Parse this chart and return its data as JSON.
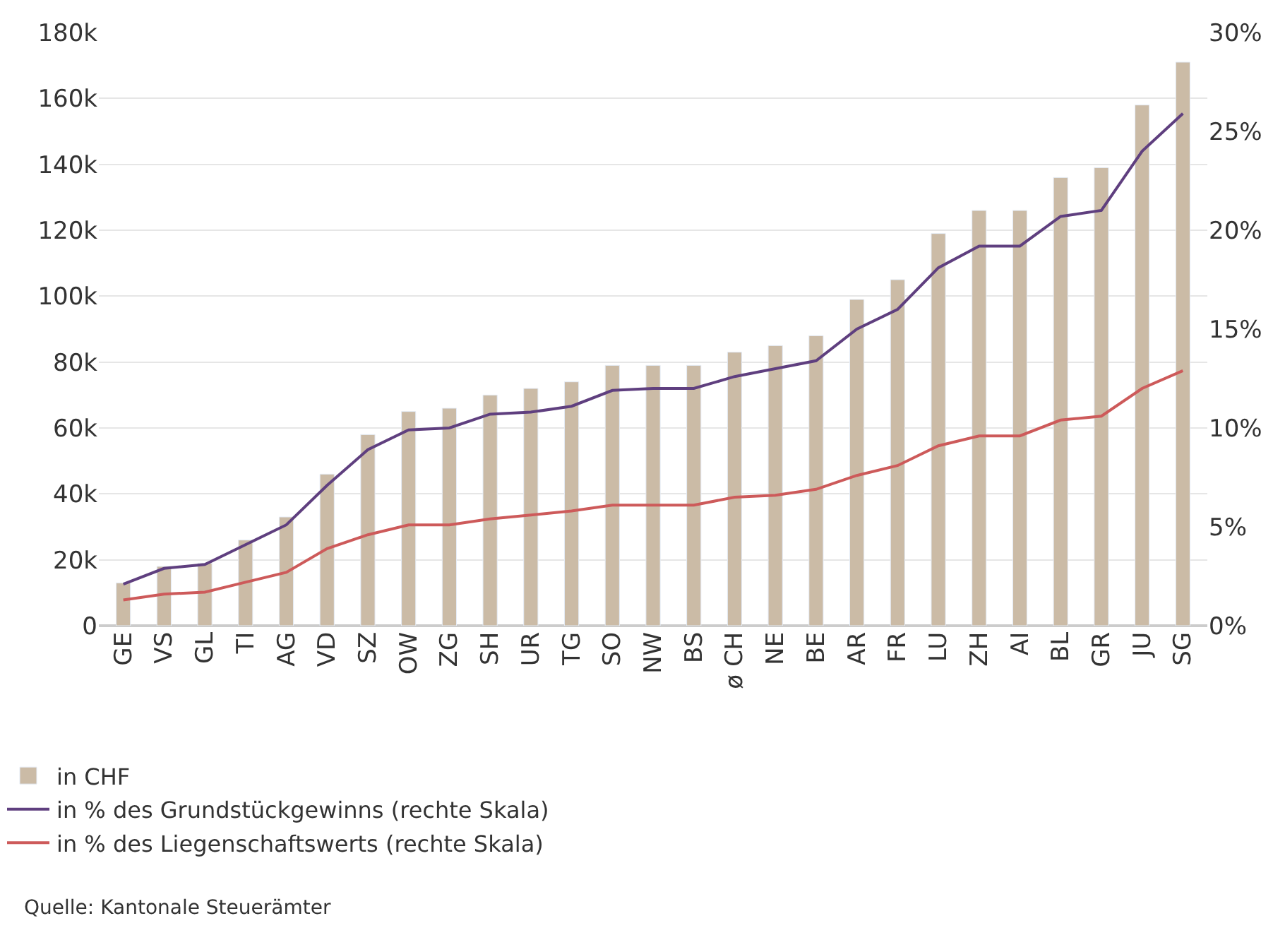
{
  "chart_data": {
    "type": "bar",
    "categories": [
      "GE",
      "VS",
      "GL",
      "TI",
      "AG",
      "VD",
      "SZ",
      "OW",
      "ZG",
      "SH",
      "UR",
      "TG",
      "SO",
      "NW",
      "BS",
      "ø CH",
      "NE",
      "BE",
      "AR",
      "FR",
      "LU",
      "ZH",
      "AI",
      "BL",
      "GR",
      "JU",
      "SG"
    ],
    "series": [
      {
        "name": "in CHF",
        "color": "#cbbba6",
        "values": [
          13,
          18,
          19,
          26,
          33,
          46,
          58,
          65,
          66,
          70,
          72,
          74,
          79,
          79,
          79,
          83,
          85,
          88,
          99,
          105,
          119,
          126,
          126,
          136,
          139,
          158,
          171
        ]
      },
      {
        "name": "in % des Grundstückgewinns (rechte Skala)",
        "type": "line",
        "axis": "y2",
        "color": "#5f3f7f",
        "values": [
          2.1,
          2.9,
          3.1,
          4.1,
          5.1,
          7.1,
          8.9,
          9.9,
          10.0,
          10.7,
          10.8,
          11.1,
          11.9,
          12.0,
          12.0,
          12.6,
          13.0,
          13.4,
          15.0,
          16.0,
          18.1,
          19.2,
          19.2,
          20.7,
          21.0,
          24.0,
          25.9
        ]
      },
      {
        "name": "in % des Liegenschaftswerts (rechte Skala)",
        "type": "line",
        "axis": "y2",
        "color": "#cd5a5a",
        "values": [
          1.3,
          1.6,
          1.7,
          2.2,
          2.7,
          3.9,
          4.6,
          5.1,
          5.1,
          5.4,
          5.6,
          5.8,
          6.1,
          6.1,
          6.1,
          6.5,
          6.6,
          6.9,
          7.6,
          8.1,
          9.1,
          9.6,
          9.6,
          10.4,
          10.6,
          12.0,
          12.9
        ]
      }
    ],
    "ylim": [
      0,
      180
    ],
    "yticks": [
      0,
      {
        "value": 20,
        "label": "20k"
      },
      {
        "value": 40,
        "label": "40k"
      },
      {
        "value": 60,
        "label": "60k"
      },
      {
        "value": 80,
        "label": "80k"
      },
      {
        "value": 100,
        "label": "100k"
      },
      {
        "value": 120,
        "label": "120k"
      },
      {
        "value": 140,
        "label": "140k"
      },
      {
        "value": 160,
        "label": "160k"
      },
      {
        "value": 180,
        "label": "180k"
      }
    ],
    "y2lim": [
      0,
      30
    ],
    "y2ticks": [
      {
        "value": 0,
        "label": "0%"
      },
      {
        "value": 5,
        "label": "5%"
      },
      {
        "value": 10,
        "label": "10%"
      },
      {
        "value": 15,
        "label": "15%"
      },
      {
        "value": 20,
        "label": "20%"
      },
      {
        "value": 25,
        "label": "25%"
      },
      {
        "value": 30,
        "label": "30%"
      }
    ],
    "grid": "y",
    "legend": "bottom",
    "marker": "none",
    "line_style": "solid",
    "annotations": [
      "Quelle: Kantonale Steuerämter"
    ]
  }
}
